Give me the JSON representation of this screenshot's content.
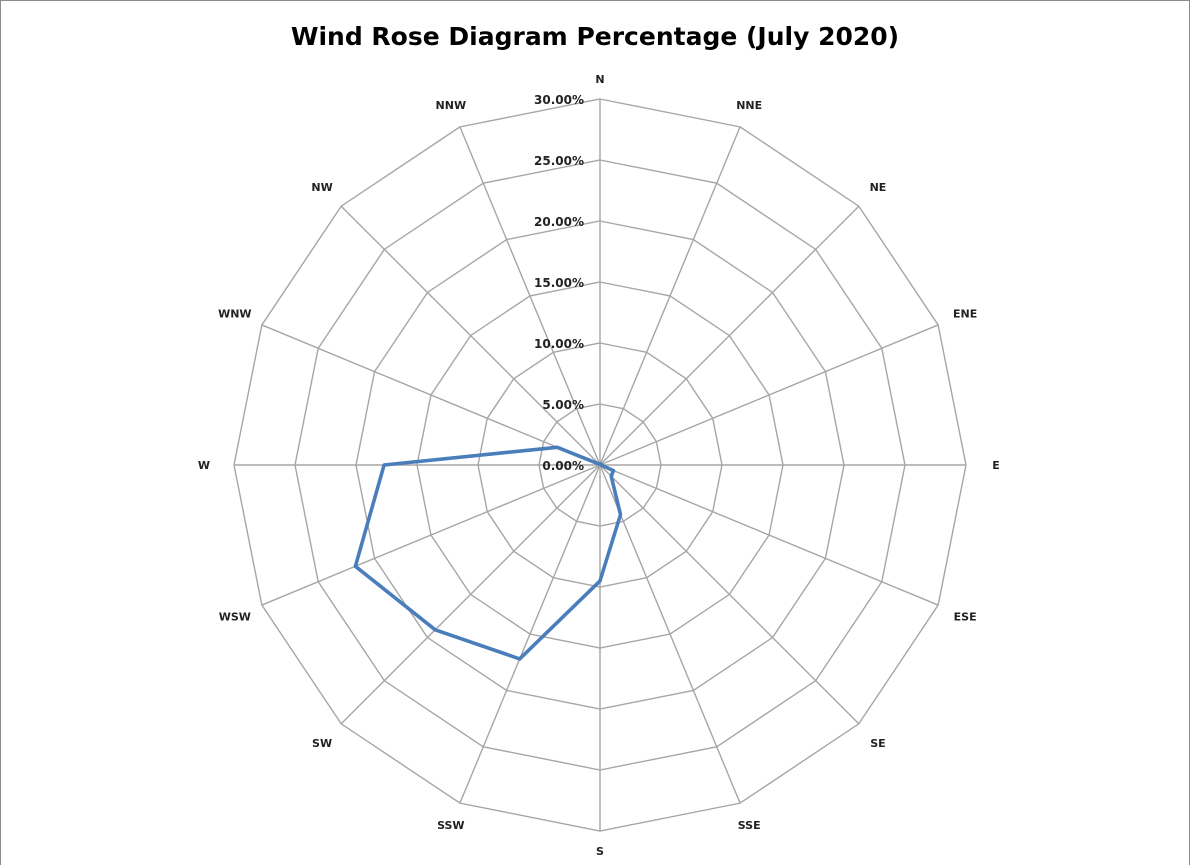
{
  "chart_data": {
    "type": "radar",
    "title": "Wind Rose Diagram Percentage (July 2020)",
    "categories": [
      "N",
      "NNE",
      "NE",
      "ENE",
      "E",
      "ESE",
      "SE",
      "SSE",
      "S",
      "SSW",
      "SW",
      "WSW",
      "W",
      "WNW",
      "NW",
      "NNW"
    ],
    "r_ticks": [
      "0.00%",
      "5.00%",
      "10.00%",
      "15.00%",
      "20.00%",
      "25.00%",
      "30.00%"
    ],
    "r_tick_values": [
      0,
      5,
      10,
      15,
      20,
      25,
      30
    ],
    "rlim": [
      0,
      30
    ],
    "grid": true,
    "series": [
      {
        "values": [
          0.1,
          0.1,
          0.1,
          0.1,
          0.1,
          1.2,
          1.3,
          4.4,
          9.5,
          17.2,
          19.1,
          21.7,
          17.7,
          3.8,
          0.1,
          0.1
        ],
        "color": "#4a7ebb"
      }
    ]
  }
}
